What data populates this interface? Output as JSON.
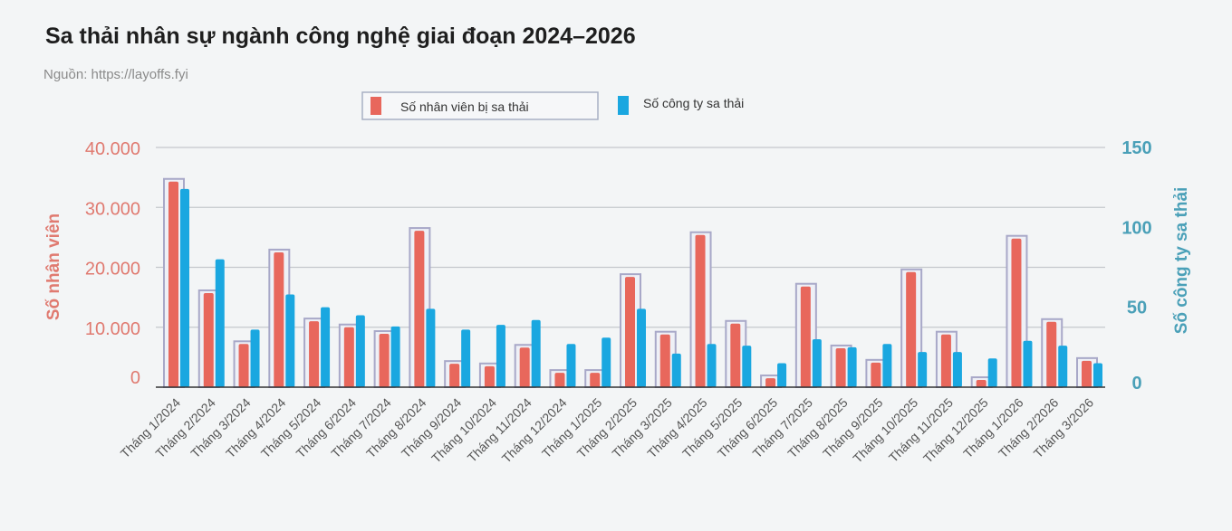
{
  "chart_data": {
    "type": "bar",
    "title": "Sa thải nhân sự ngành công nghệ giai đoạn 2024–2026",
    "subtitle": "Nguồn: https://layoffs.fyi",
    "ylabel_left": "Số nhân viên",
    "ylabel_right": "Số công ty sa thải",
    "ylim_left": [
      0,
      40000
    ],
    "ylim_right": [
      0,
      150
    ],
    "yticks_left": [
      "0",
      "10.000",
      "20.000",
      "30.000",
      "40.000"
    ],
    "yticks_left_values": [
      0,
      10000,
      20000,
      30000,
      40000
    ],
    "yticks_right": [
      "0",
      "50",
      "100",
      "150"
    ],
    "yticks_right_values": [
      0,
      50,
      100,
      150
    ],
    "grid": true,
    "legend_placement": "top-center",
    "categories": [
      "Tháng 1/2024",
      "Tháng 2/2024",
      "Tháng 3/2024",
      "Tháng 4/2024",
      "Tháng 5/2024",
      "Tháng 6/2024",
      "Tháng 7/2024",
      "Tháng 8/2024",
      "Tháng 9/2024",
      "Tháng 10/2024",
      "Tháng 11/2024",
      "Tháng 12/2024",
      "Tháng 1/2025",
      "Tháng 2/2025",
      "Tháng 3/2025",
      "Tháng 4/2025",
      "Tháng 5/2025",
      "Tháng 6/2025",
      "Tháng 7/2025",
      "Tháng 8/2025",
      "Tháng 9/2025",
      "Tháng 10/2025",
      "Tháng 11/2025",
      "Tháng 12/2025",
      "Tháng 1/2026",
      "Tháng 2/2026",
      "Tháng 3/2026"
    ],
    "series": [
      {
        "name": "Số nhân viên bị sa thải",
        "axis": "left",
        "color": "#e8675c",
        "values": [
          34300,
          15700,
          7200,
          22500,
          11000,
          10000,
          8900,
          26100,
          3900,
          3500,
          6600,
          2400,
          2400,
          18400,
          8800,
          25400,
          10600,
          1500,
          16800,
          6500,
          4100,
          19200,
          8800,
          1200,
          24800,
          10900,
          4400
        ]
      },
      {
        "name": "Số công ty sa thải",
        "axis": "right",
        "color": "#1aa7e0",
        "values": [
          124,
          80,
          36,
          58,
          50,
          45,
          38,
          49,
          36,
          39,
          42,
          27,
          31,
          49,
          21,
          27,
          26,
          15,
          30,
          25,
          27,
          22,
          22,
          18,
          29,
          26,
          15
        ]
      }
    ],
    "colors": {
      "left_axis": "#e07a70",
      "right_axis": "#4aa0b8",
      "outline": "#a8a8c8"
    }
  }
}
